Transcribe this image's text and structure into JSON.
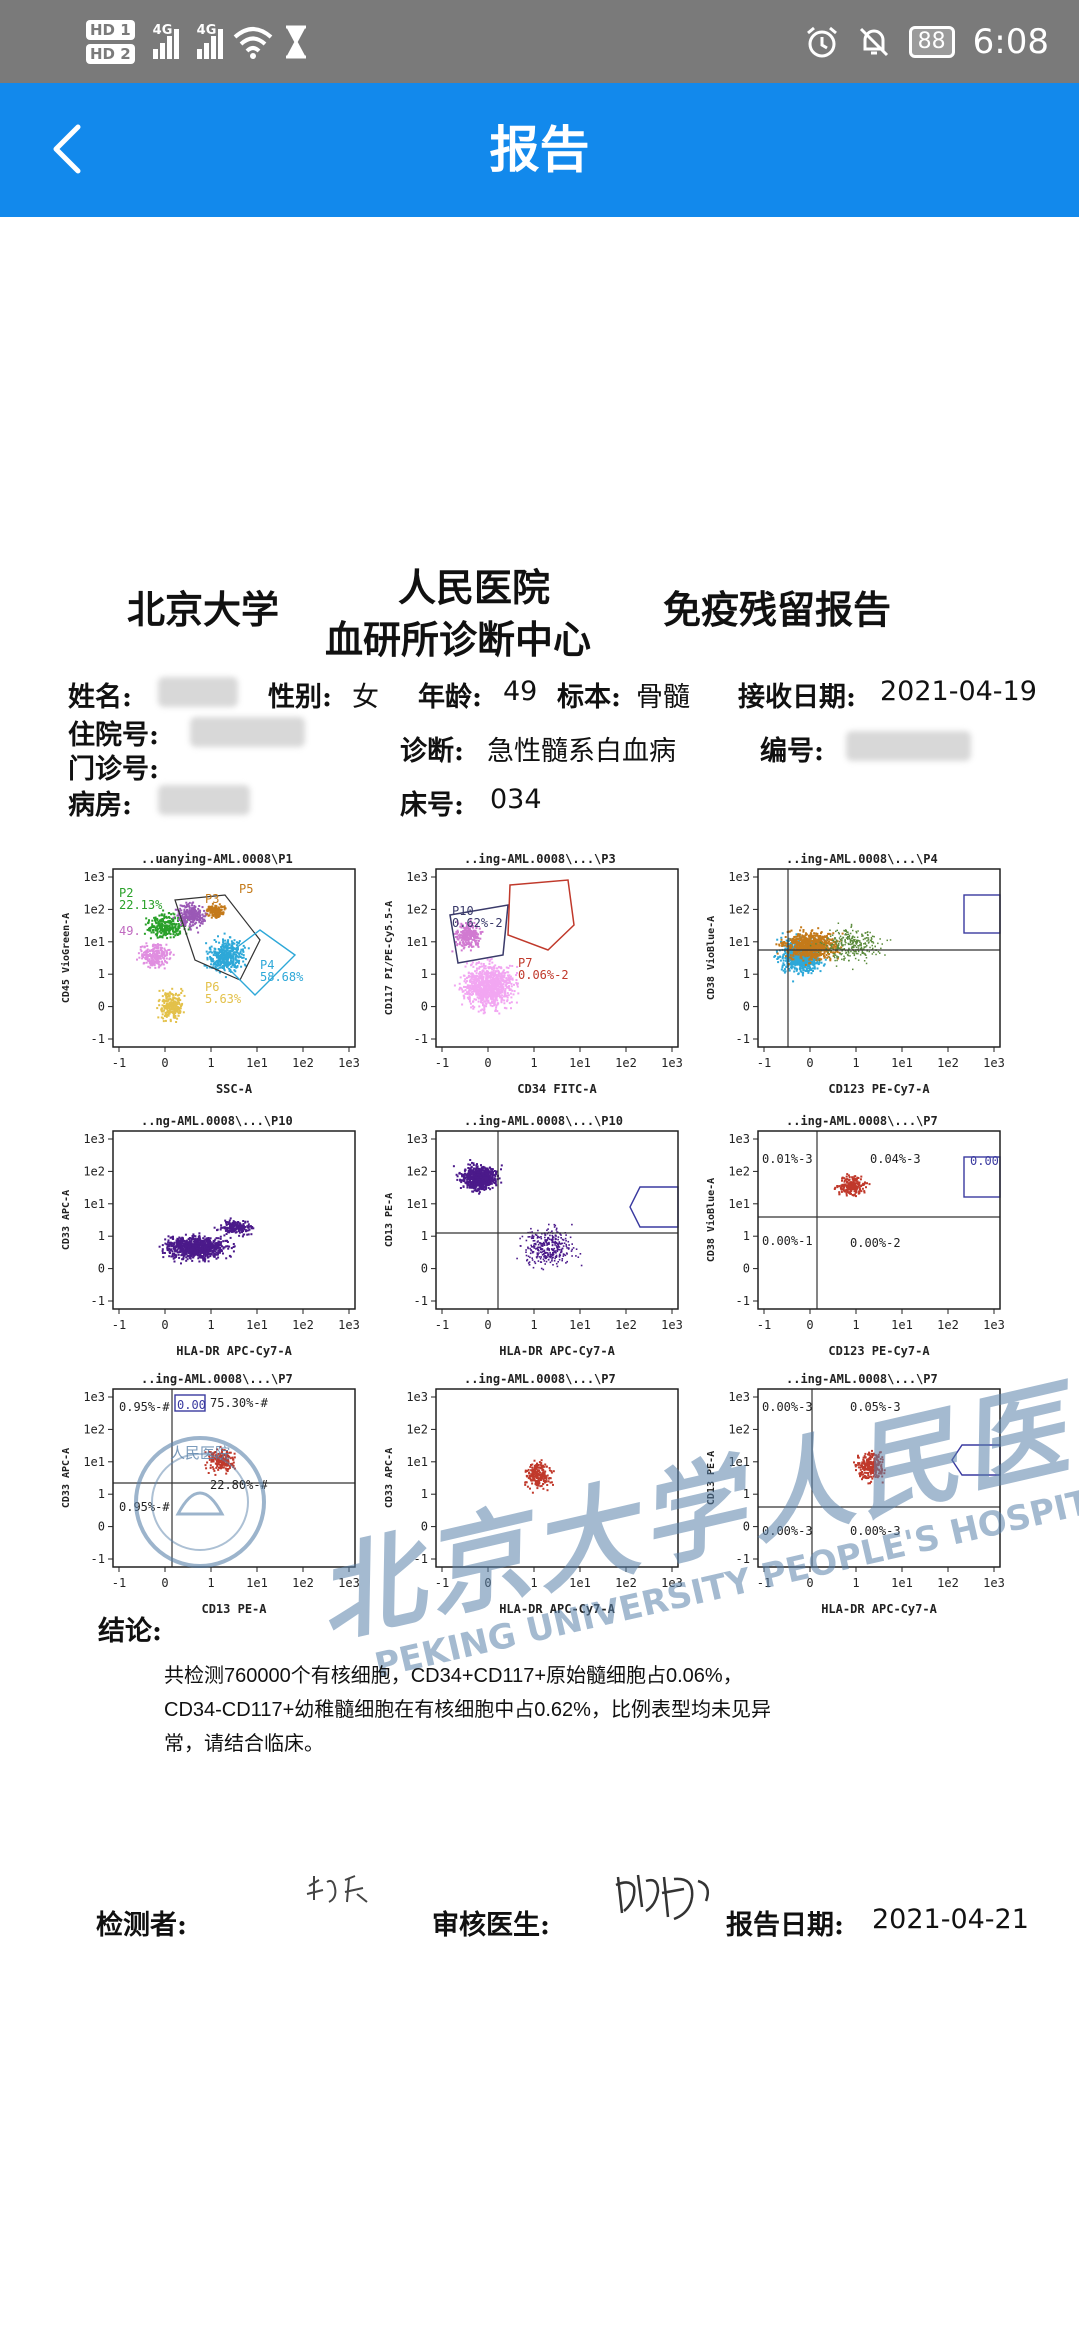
{
  "status": {
    "hd1": "HD 1",
    "hd2": "HD 2",
    "net1": "4G",
    "net2": "4G",
    "battery": "88",
    "time": "6:08",
    "icons": [
      "hourglass-icon",
      "alarm-icon",
      "bell-off-icon",
      "wifi-icon"
    ]
  },
  "appbar": {
    "title": "报告"
  },
  "report": {
    "header": {
      "left": "北京大学",
      "center_top": "人民医院",
      "center_bottom": "血研所诊断中心",
      "right": "免疫残留报告"
    },
    "fields": {
      "name_label": "姓名:",
      "gender_label": "性别:",
      "gender": "女",
      "age_label": "年龄:",
      "age": "49",
      "specimen_label": "标本:",
      "specimen": "骨髓",
      "received_label": "接收日期:",
      "received": "2021-04-19",
      "inpatient_label": "住院号:",
      "diagnosis_label": "诊断:",
      "diagnosis": "急性髓系白血病",
      "number_label": "编号:",
      "outpatient_label": "门诊号:",
      "ward_label": "病房:",
      "bed_label": "床号:",
      "bed": "034"
    },
    "plots": [
      {
        "title": "..uanying-AML.0008\\P1",
        "x": "SSC-A",
        "y": "CD45 VioGreen-A",
        "gates": [
          "P2",
          "22.13%",
          "P5",
          "P3",
          "49.",
          "P4",
          "58.68%",
          "P6",
          "5.63%"
        ]
      },
      {
        "title": "..ing-AML.0008\\...\\P3",
        "x": "CD34 FITC-A",
        "y": "CD117 PI/PE-Cy5.5-A",
        "gates": [
          "P10",
          "0.62%-2",
          "P7",
          "0.06%-2"
        ]
      },
      {
        "title": "..ing-AML.0008\\...\\P4",
        "x": "CD123 PE-Cy7-A",
        "y": "CD38 VioBlue-A",
        "gates": []
      },
      {
        "title": "..ng-AML.0008\\...\\P10",
        "x": "HLA-DR APC-Cy7-A",
        "y": "CD33 APC-A",
        "gates": []
      },
      {
        "title": "..ing-AML.0008\\...\\P10",
        "x": "HLA-DR APC-Cy7-A",
        "y": "CD13 PE-A",
        "gates": []
      },
      {
        "title": "..ing-AML.0008\\...\\P7",
        "x": "CD123 PE-Cy7-A",
        "y": "CD38 VioBlue-A",
        "gates": [
          "0.01%-3",
          "0.04%-3",
          "0.00",
          "0.00%-1",
          "0.00%-2"
        ]
      },
      {
        "title": "..ing-AML.0008\\...\\P7",
        "x": "CD13 PE-A",
        "y": "CD33 APC-A",
        "gates": [
          "0.95%-#",
          "0.00",
          "75.30%-#",
          "0.95%-#",
          "22.80%-#"
        ]
      },
      {
        "title": "..ing-AML.0008\\...\\P7",
        "x": "HLA-DR APC-Cy7-A",
        "y": "CD33 APC-A",
        "gates": []
      },
      {
        "title": "..ing-AML.0008\\...\\P7",
        "x": "HLA-DR APC-Cy7-A",
        "y": "CD13 PE-A",
        "gates": [
          "0.00%-3",
          "0.05%-3",
          "0.00%-3",
          "0.00%-3"
        ]
      }
    ],
    "ticks_x": [
      "-1",
      "0",
      "1",
      "1e1",
      "1e2",
      "1e3"
    ],
    "ticks_y": [
      "1e3",
      "1e2",
      "1e1",
      "1",
      "0",
      "-1"
    ],
    "conclusion_label": "结论:",
    "conclusion_lines": [
      "共检测760000个有核细胞，CD34+CD117+原始髓细胞占0.06%，",
      "CD34-CD117+幼稚髓细胞在有核细胞中占0.62%，比例表型均未见异",
      "常，请结合临床。"
    ],
    "signatures": {
      "tester_label": "检测者:",
      "reviewer_label": "审核医生:",
      "report_date_label": "报告日期:",
      "report_date": "2021-04-21"
    },
    "watermark": {
      "chinese": "北京大学人民医院",
      "english": "PEKING UNIVERSITY PEOPLE'S HOSPITAL",
      "seal": "人民医院"
    }
  },
  "colors": {
    "appbar": "#1289ec",
    "statusbar": "#7a7a7a",
    "gate_blue": "#3a3aa0",
    "gate_red": "#c0392b",
    "dots_purple": "#4b1a8a",
    "dots_red": "#c0392b"
  }
}
